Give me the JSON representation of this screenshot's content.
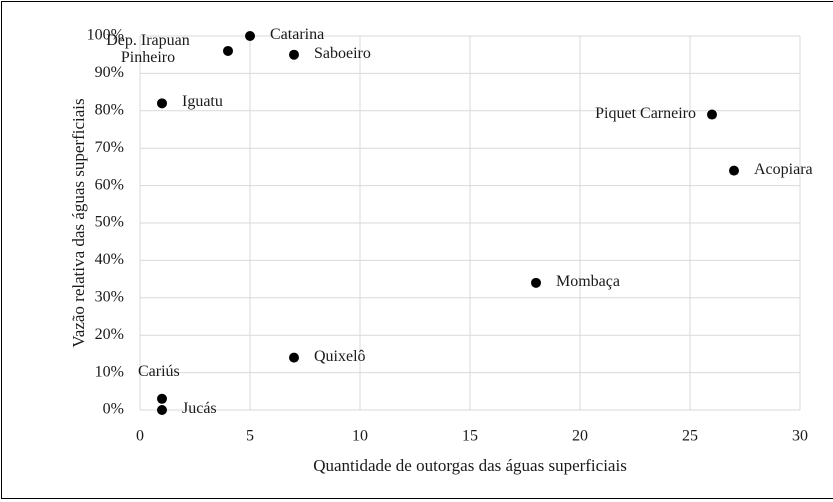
{
  "chart_data": {
    "type": "scatter",
    "x_label": "Quantidade de outorgas das águas superficiais",
    "y_label": "Vazão relativa das águas superficiais",
    "point_labels": [
      "Catarina",
      "Dep. Irapuan Pinheiro",
      "Saboeiro",
      "Iguatu",
      "Piquet Carneiro",
      "Acopiara",
      "Mombaça",
      "Quixelô",
      "Cariús",
      "Jucás"
    ],
    "x": [
      5,
      4,
      7,
      1,
      26,
      27,
      18,
      7,
      1,
      1
    ],
    "values": [
      100,
      96,
      95,
      82,
      79,
      64,
      34,
      14,
      3,
      0
    ],
    "color": "#000000",
    "xlim": [
      0,
      30
    ],
    "xticks": [
      0,
      5,
      10,
      15,
      20,
      25,
      30
    ],
    "ylim": [
      0,
      100
    ],
    "yticks": [
      {
        "value": 0,
        "label": "0%"
      },
      {
        "value": 10,
        "label": "10%"
      },
      {
        "value": 20,
        "label": "20%"
      },
      {
        "value": 30,
        "label": "30%"
      },
      {
        "value": 40,
        "label": "40%"
      },
      {
        "value": 50,
        "label": "50%"
      },
      {
        "value": 60,
        "label": "60%"
      },
      {
        "value": 70,
        "label": "70%"
      },
      {
        "value": 80,
        "label": "80%"
      },
      {
        "value": 90,
        "label": "90%"
      },
      {
        "value": 100,
        "label": "100%"
      }
    ],
    "grid": true
  }
}
